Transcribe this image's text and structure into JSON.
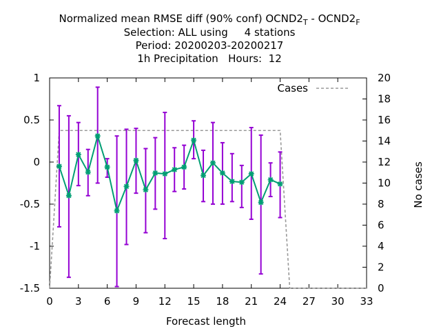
{
  "chart_data": {
    "type": "line",
    "title": {
      "line1_main": "Normalized mean RMSE diff (90% conf) OCND2",
      "line1_sub_a": "T",
      "line1_mid": " - OCND2",
      "line1_sub_b": "F",
      "line2": "Selection: ALL using     4 stations",
      "line3": "Period: 20200203-20200217",
      "line4": "1h Precipitation   Hours:  12"
    },
    "xlabel": "Forecast length",
    "ylabel_right": "No cases",
    "xlim": [
      0,
      33
    ],
    "ylim": [
      -1.5,
      1
    ],
    "y2lim": [
      0,
      20
    ],
    "x_ticks": [
      0,
      3,
      6,
      9,
      12,
      15,
      18,
      21,
      24,
      27,
      30,
      33
    ],
    "y_ticks": [
      1,
      0.5,
      0,
      -0.5,
      -1,
      -1.5
    ],
    "y_tick_labels": [
      "1",
      "0.5",
      "0",
      "-0.5",
      "-1",
      "-1.5"
    ],
    "y2_ticks": [
      20,
      18,
      16,
      14,
      12,
      10,
      8,
      6,
      4,
      2,
      0
    ],
    "legend_position": "top-right",
    "colors": {
      "errorbar": "#9400d3",
      "line": "#009e73",
      "cases": "#999999"
    },
    "series": [
      {
        "kind": "errorbar-line",
        "x": [
          1,
          2,
          3,
          4,
          5,
          6,
          7,
          8,
          9,
          10,
          11,
          12,
          13,
          14,
          15,
          16,
          17,
          18,
          19,
          20,
          21,
          22,
          23,
          24
        ],
        "y": [
          -0.05,
          -0.4,
          0.09,
          -0.12,
          0.31,
          -0.06,
          -0.58,
          -0.29,
          0.02,
          -0.33,
          -0.13,
          -0.14,
          -0.09,
          -0.06,
          0.26,
          -0.16,
          -0.01,
          -0.13,
          -0.23,
          -0.24,
          -0.14,
          -0.48,
          -0.21,
          -0.26
        ],
        "low": [
          -0.77,
          -1.37,
          -0.28,
          -0.4,
          -0.25,
          -0.18,
          -1.48,
          -0.98,
          -0.37,
          -0.84,
          -0.56,
          -0.91,
          -0.35,
          -0.32,
          0.04,
          -0.47,
          -0.5,
          -0.5,
          -0.47,
          -0.54,
          -0.68,
          -1.33,
          -0.41,
          -0.66
        ],
        "high": [
          0.67,
          0.55,
          0.47,
          0.15,
          0.89,
          0.04,
          0.31,
          0.39,
          0.4,
          0.16,
          0.29,
          0.59,
          0.17,
          0.2,
          0.49,
          0.14,
          0.47,
          0.23,
          0.1,
          -0.04,
          0.41,
          0.32,
          -0.01,
          0.12
        ]
      },
      {
        "kind": "cases",
        "name": "Cases",
        "x": [
          0,
          1,
          24,
          25,
          33
        ],
        "y": [
          0,
          15,
          15,
          0,
          0
        ]
      }
    ]
  }
}
